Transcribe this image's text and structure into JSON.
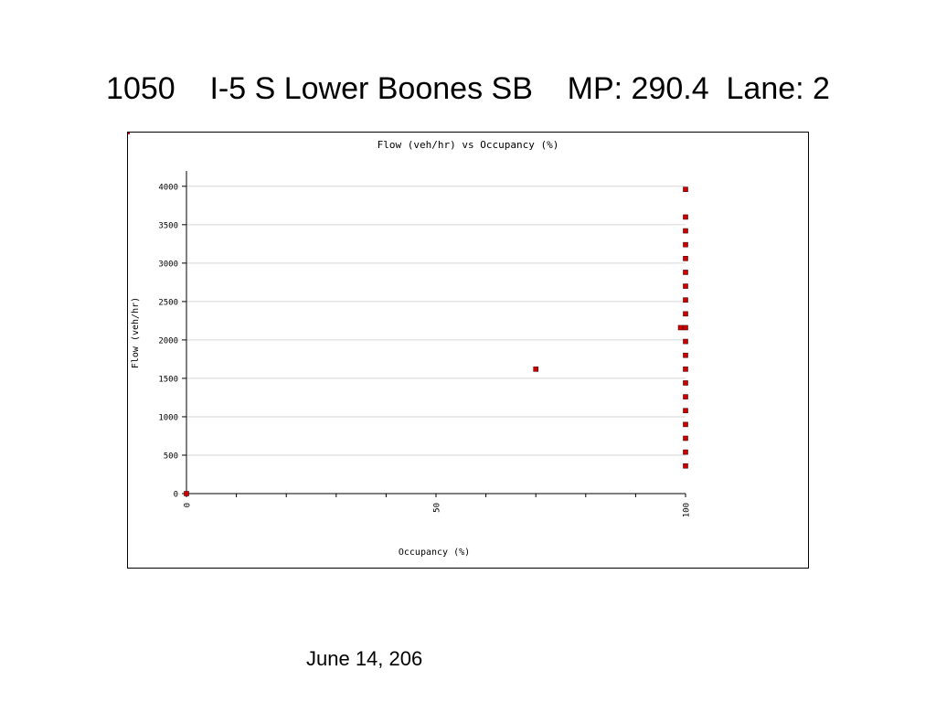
{
  "slide": {
    "title": "1050    I-5 S Lower Boones SB    MP: 290.4  Lane: 2",
    "date": "June 14, 206"
  },
  "chart_data": {
    "type": "scatter",
    "title": "Flow (veh/hr) vs Occupancy (%)",
    "xlabel": "Occupancy (%)",
    "ylabel": "Flow (veh/hr)",
    "xlim": [
      0,
      100
    ],
    "ylim": [
      0,
      4200
    ],
    "xticks": [
      0,
      50,
      100
    ],
    "yticks": [
      0,
      500,
      1000,
      1500,
      2000,
      2500,
      3000,
      3500,
      4000
    ],
    "grid": "horizontal",
    "marker_color": "#cc0000",
    "points": [
      {
        "x": 0,
        "y": 0
      },
      {
        "x": 70,
        "y": 1620
      },
      {
        "x": 99,
        "y": 2160
      },
      {
        "x": 100,
        "y": 360
      },
      {
        "x": 100,
        "y": 540
      },
      {
        "x": 100,
        "y": 720
      },
      {
        "x": 100,
        "y": 900
      },
      {
        "x": 100,
        "y": 1080
      },
      {
        "x": 100,
        "y": 1260
      },
      {
        "x": 100,
        "y": 1440
      },
      {
        "x": 100,
        "y": 1620
      },
      {
        "x": 100,
        "y": 1800
      },
      {
        "x": 100,
        "y": 1980
      },
      {
        "x": 100,
        "y": 2160
      },
      {
        "x": 100,
        "y": 2340
      },
      {
        "x": 100,
        "y": 2520
      },
      {
        "x": 100,
        "y": 2700
      },
      {
        "x": 100,
        "y": 2880
      },
      {
        "x": 100,
        "y": 3060
      },
      {
        "x": 100,
        "y": 3240
      },
      {
        "x": 100,
        "y": 3420
      },
      {
        "x": 100,
        "y": 3600
      },
      {
        "x": 100,
        "y": 3960
      }
    ]
  }
}
